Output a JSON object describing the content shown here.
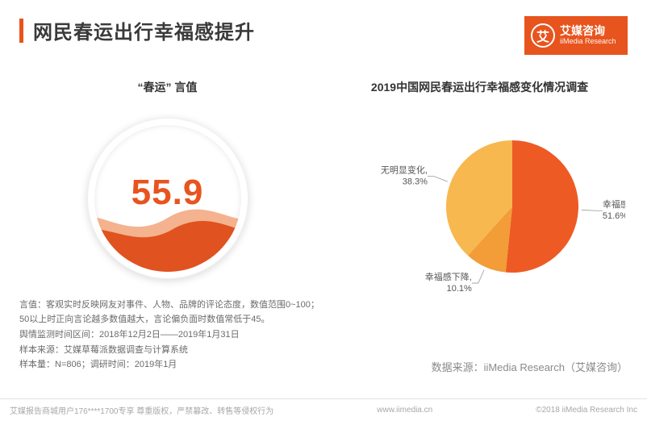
{
  "header": {
    "title": "网民春运出行幸福感提升",
    "accent_color": "#e8541e"
  },
  "logo": {
    "mark": "艾",
    "cn": "艾媒咨询",
    "en": "iiMedia Research",
    "bg": "#e8541e"
  },
  "gauge": {
    "title": "“春运” 言值",
    "value": "55.9",
    "value_color": "#e8541e",
    "wave_color_back": "#f2a47a",
    "wave_color_front": "#e0521f",
    "fill_ratio": 0.55
  },
  "pie": {
    "title": "2019中国网民春运出行幸福感变化情况调查",
    "type": "pie",
    "slices": [
      {
        "label": "幸福感提升",
        "value": 51.6,
        "color": "#ee5a24"
      },
      {
        "label": "幸福感下降",
        "value": 10.1,
        "color": "#f29d38"
      },
      {
        "label": "无明显变化",
        "value": 38.3,
        "color": "#f7b84f"
      }
    ],
    "label_fontsize": 11,
    "label_color": "#555555"
  },
  "notes": {
    "line1": "言值：客观实时反映网友对事件、人物、品牌的评论态度，数值范围0~100；",
    "line2": "50以上时正向言论越多数值越大，言论偏负面时数值常低于45。",
    "line3": "舆情监测时间区间：2018年12月2日——2019年1月31日",
    "line4": "样本来源：艾媒草莓派数据调查与计算系统",
    "line5": "样本量：N=806；调研时间：2019年1月"
  },
  "data_source": "数据来源：iiMedia Research（艾媒咨询）",
  "footer": {
    "left": "艾媒报告商城用户176****1700专享 尊重版权，严禁篡改、转售等侵权行为",
    "center": "www.iimedia.cn",
    "right": "©2018 iiMedia Research Inc"
  }
}
